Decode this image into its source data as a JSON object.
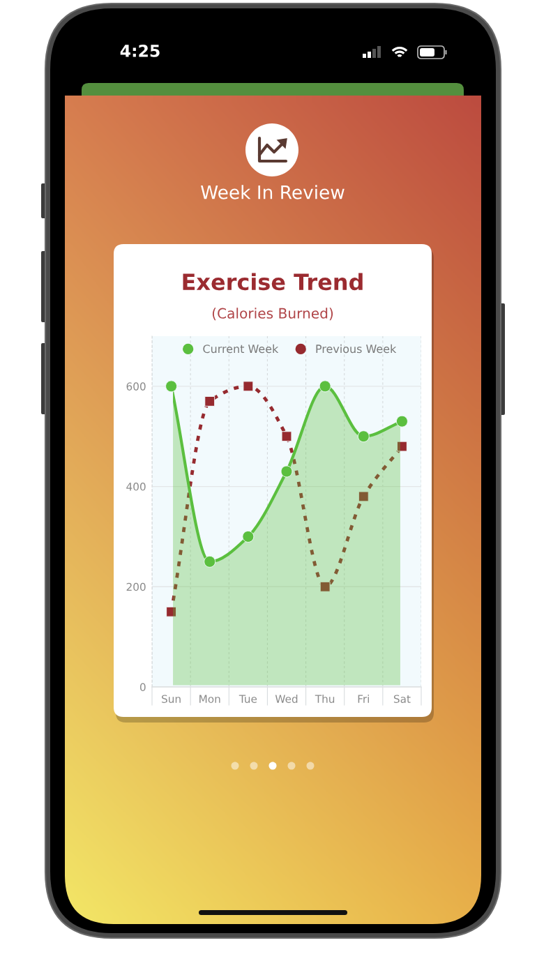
{
  "chart_data": {
    "type": "line",
    "title": "Exercise Trend",
    "subtitle": "(Calories Burned)",
    "annotations": [
      "4:25",
      "Week In Review"
    ],
    "categories": [
      "Sun",
      "Mon",
      "Tue",
      "Wed",
      "Thu",
      "Fri",
      "Sat"
    ],
    "series": [
      {
        "name": "Current Week",
        "type": "area",
        "color": "#5bbf3f",
        "marker": "circle",
        "line_style": "solid",
        "values": [
          600,
          250,
          300,
          430,
          600,
          500,
          530
        ]
      },
      {
        "name": "Previous Week",
        "type": "line",
        "color": "#962a2f",
        "marker": "square",
        "line_style": "dashed",
        "values": [
          150,
          570,
          600,
          500,
          200,
          380,
          480
        ]
      }
    ],
    "ylim": [
      0,
      700
    ],
    "yticks": [
      0,
      200,
      400,
      600
    ],
    "grid": true,
    "legend": "top"
  }
}
